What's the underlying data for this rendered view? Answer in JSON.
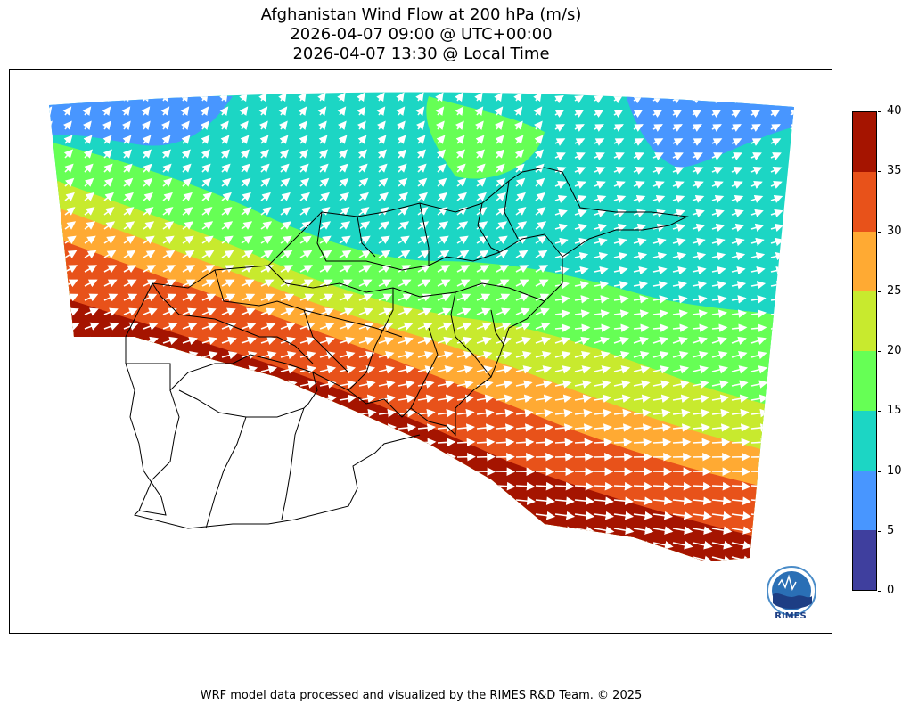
{
  "title": {
    "line1": "Afghanistan Wind Flow at 200 hPa (m/s)",
    "line2": "2026-04-07 09:00 @ UTC+00:00",
    "line3": "2026-04-07 13:30 @ Local Time"
  },
  "colorbar": {
    "ticks": [
      "0",
      "5",
      "10",
      "15",
      "20",
      "25",
      "30",
      "35",
      "40"
    ],
    "bins": [
      {
        "range": "0-5",
        "color": "#3f3f9e"
      },
      {
        "range": "5-10",
        "color": "#4896ff"
      },
      {
        "range": "10-15",
        "color": "#1cd6c4"
      },
      {
        "range": "15-20",
        "color": "#66ff55"
      },
      {
        "range": "20-25",
        "color": "#c8ea2e"
      },
      {
        "range": "25-30",
        "color": "#ffaa33"
      },
      {
        "range": "30-35",
        "color": "#e8521a"
      },
      {
        "range": "35-40",
        "color": "#a51400"
      }
    ]
  },
  "logo": {
    "text": "RIMES",
    "icon": "rimes-globe-logo"
  },
  "footer": "WRF model data processed and visualized by the RIMES R&D Team. © 2025",
  "chart_data": {
    "type": "heatmap",
    "variable": "Wind speed at 200 hPa",
    "units": "m/s",
    "colorbar_range": [
      0,
      40
    ],
    "colorbar_interval": 5,
    "vectors": "white wind arrows, flow predominantly west-to-east / southwest-to-northeast",
    "pattern": "speeds 5-15 m/s in the north (blue-cyan), increasing southward to 35-40 m/s jet core along the southern edge (dark red)"
  }
}
